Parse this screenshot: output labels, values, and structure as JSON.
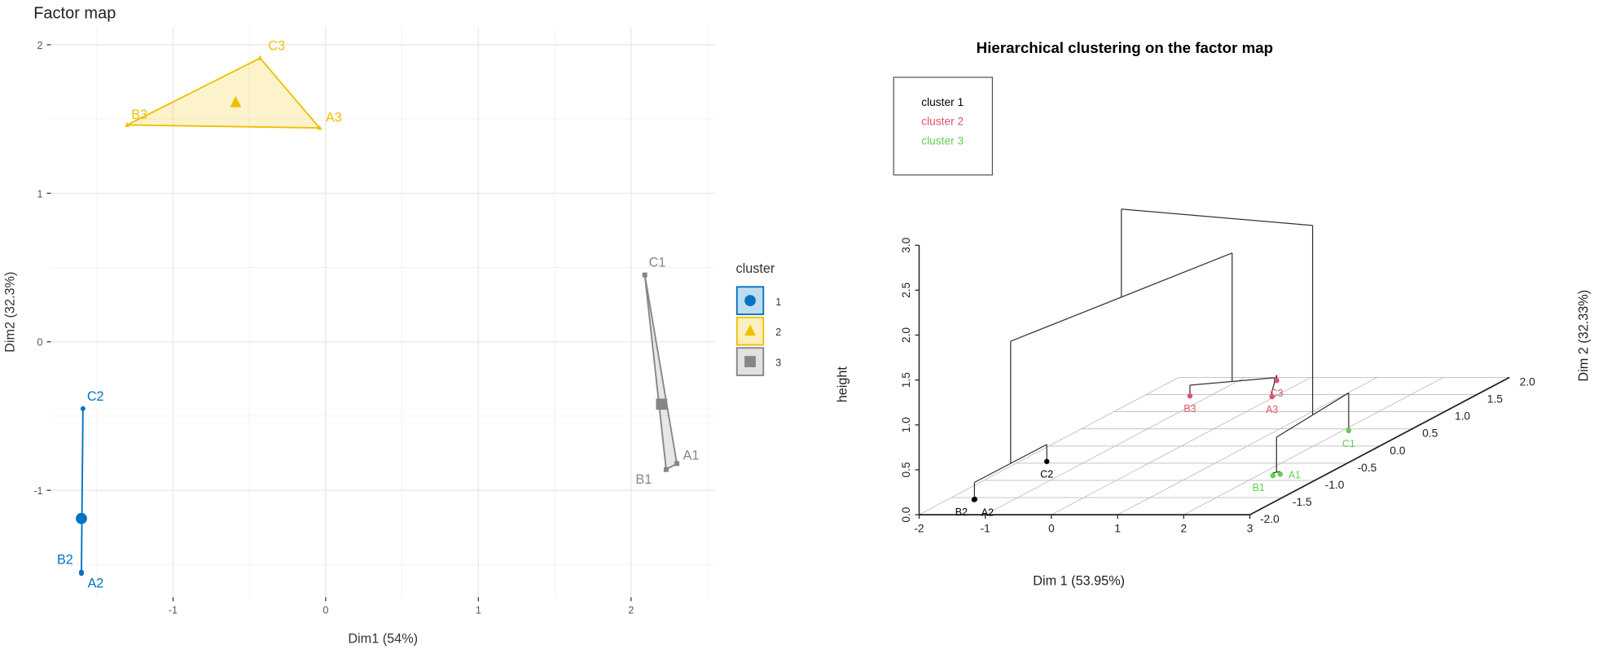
{
  "chart_data": [
    {
      "type": "scatter",
      "title": "Factor map",
      "xlabel": "Dim1 (54%)",
      "ylabel": "Dim2 (32.3%)",
      "xlim": [
        -1.8,
        2.55
      ],
      "ylim": [
        -1.72,
        2.12
      ],
      "grid": true,
      "xticks": [
        "-1",
        "0",
        "1",
        "2"
      ],
      "yticks": [
        "-1",
        "0",
        "1",
        "2"
      ],
      "legend": {
        "title": "cluster",
        "position": "right",
        "entries": [
          "1",
          "2",
          "3"
        ]
      },
      "series": [
        {
          "name": "1",
          "color": "#0073C2",
          "marker": "circle",
          "points": [
            {
              "label": "C2",
              "x": -1.59,
              "y": -0.45
            },
            {
              "label": "B2",
              "x": -1.6,
              "y": -1.55
            },
            {
              "label": "A2",
              "x": -1.6,
              "y": -1.56
            }
          ],
          "centroid": {
            "x": -1.6,
            "y": -1.19
          }
        },
        {
          "name": "2",
          "color": "#EFC000",
          "marker": "triangle",
          "points": [
            {
              "label": "C3",
              "x": -0.43,
              "y": 1.91
            },
            {
              "label": "B3",
              "x": -1.3,
              "y": 1.46
            },
            {
              "label": "A3",
              "x": -0.04,
              "y": 1.44
            }
          ],
          "centroid": {
            "x": -0.59,
            "y": 1.61
          }
        },
        {
          "name": "3",
          "color": "#868686",
          "marker": "square",
          "points": [
            {
              "label": "C1",
              "x": 2.09,
              "y": 0.45
            },
            {
              "label": "A1",
              "x": 2.3,
              "y": -0.82
            },
            {
              "label": "B1",
              "x": 2.23,
              "y": -0.86
            }
          ],
          "centroid": {
            "x": 2.2,
            "y": -0.42
          }
        }
      ]
    },
    {
      "type": "3d-scatter-dendrogram",
      "title": "Hierarchical clustering on the factor map",
      "xlabel": "Dim 1 (53.95%)",
      "ylabel": "Dim 2 (32.33%)",
      "zlabel": "height",
      "xlim": [
        -2,
        3
      ],
      "ylim": [
        -2,
        2
      ],
      "zlim": [
        0,
        3
      ],
      "xticks": [
        "-2",
        "-1",
        "0",
        "1",
        "2",
        "3"
      ],
      "yticks": [
        "-2.0",
        "-1.5",
        "-1.0",
        "-0.5",
        "0.0",
        "0.5",
        "1.0",
        "1.5",
        "2.0"
      ],
      "zticks": [
        "0.0",
        "0.5",
        "1.0",
        "1.5",
        "2.0",
        "2.5",
        "3.0"
      ],
      "legend": {
        "position": "top-left",
        "entries": [
          {
            "label": "cluster 1",
            "color": "#000000"
          },
          {
            "label": "cluster 2",
            "color": "#DF536B"
          },
          {
            "label": "cluster 3",
            "color": "#61D04F"
          }
        ]
      },
      "points": [
        {
          "label": "A2",
          "x": -1.6,
          "y": -1.56,
          "cluster": 1
        },
        {
          "label": "B2",
          "x": -1.6,
          "y": -1.55,
          "cluster": 1
        },
        {
          "label": "C2",
          "x": -1.59,
          "y": -0.45,
          "cluster": 1
        },
        {
          "label": "A3",
          "x": -0.04,
          "y": 1.44,
          "cluster": 2
        },
        {
          "label": "B3",
          "x": -1.3,
          "y": 1.46,
          "cluster": 2
        },
        {
          "label": "C3",
          "x": -0.43,
          "y": 1.91,
          "cluster": 2
        },
        {
          "label": "A1",
          "x": 2.3,
          "y": -0.82,
          "cluster": 3
        },
        {
          "label": "B1",
          "x": 2.23,
          "y": -0.86,
          "cluster": 3
        },
        {
          "label": "C1",
          "x": 2.09,
          "y": 0.45,
          "cluster": 3
        }
      ],
      "merges": [
        {
          "id": "m1",
          "children": [
            "A2",
            "B2"
          ],
          "height": 0.03
        },
        {
          "id": "m2",
          "children": [
            "m1",
            "C2"
          ],
          "height": 0.19
        },
        {
          "id": "m3",
          "children": [
            "A3",
            "C3"
          ],
          "height": 0.06
        },
        {
          "id": "m4",
          "children": [
            "m3",
            "B3"
          ],
          "height": 0.12
        },
        {
          "id": "m5",
          "children": [
            "A1",
            "B1"
          ],
          "height": 0.03
        },
        {
          "id": "m6",
          "children": [
            "m5",
            "C1"
          ],
          "height": 0.42
        },
        {
          "id": "m7",
          "children": [
            "m2",
            "m4"
          ],
          "height": 1.55
        },
        {
          "id": "m8",
          "children": [
            "m7",
            "m6"
          ],
          "height": 2.53
        }
      ]
    }
  ]
}
